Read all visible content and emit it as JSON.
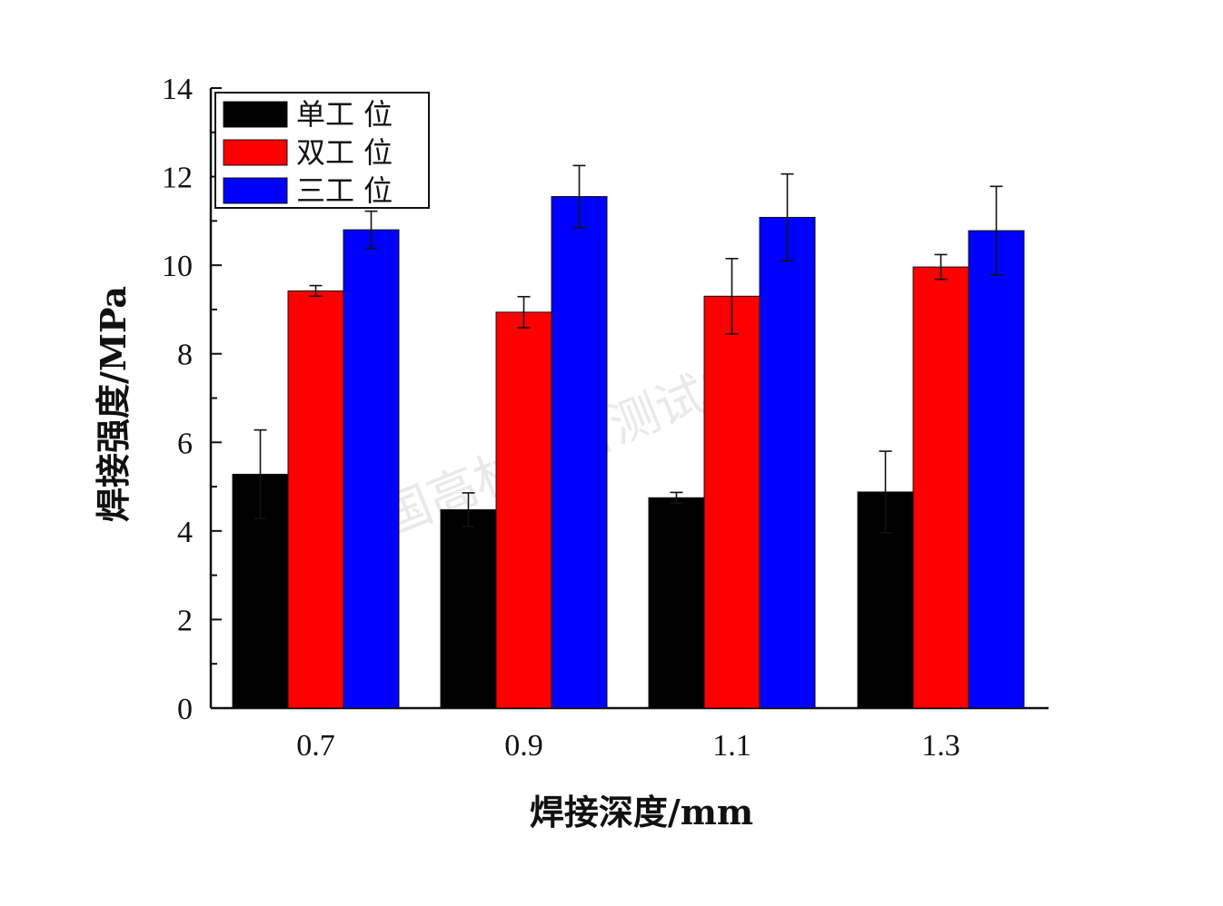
{
  "chart_data": {
    "type": "bar",
    "categories": [
      "0.7",
      "0.9",
      "1.1",
      "1.3"
    ],
    "series": [
      {
        "name": "单工 位",
        "color": "#000000",
        "values": [
          5.28,
          4.48,
          4.75,
          4.88
        ],
        "errors": [
          1.0,
          0.38,
          0.12,
          0.92
        ]
      },
      {
        "name": "双工 位",
        "color": "#ff0000",
        "values": [
          9.42,
          8.94,
          9.3,
          9.96
        ],
        "errors": [
          0.12,
          0.35,
          0.85,
          0.28
        ]
      },
      {
        "name": "三工 位",
        "color": "#0000ff",
        "values": [
          10.8,
          11.55,
          11.08,
          10.78
        ],
        "errors": [
          0.42,
          0.7,
          0.98,
          1.0
        ]
      }
    ],
    "xlabel": "焊接深度/mm",
    "ylabel": "焊接强度/MPa",
    "ylim": [
      0,
      14
    ],
    "yticks": [
      "0",
      "2",
      "4",
      "6",
      "8",
      "10",
      "12",
      "14"
    ],
    "legend_position": "top-left",
    "grid": false
  },
  "watermark": "国高材分析测试中心"
}
